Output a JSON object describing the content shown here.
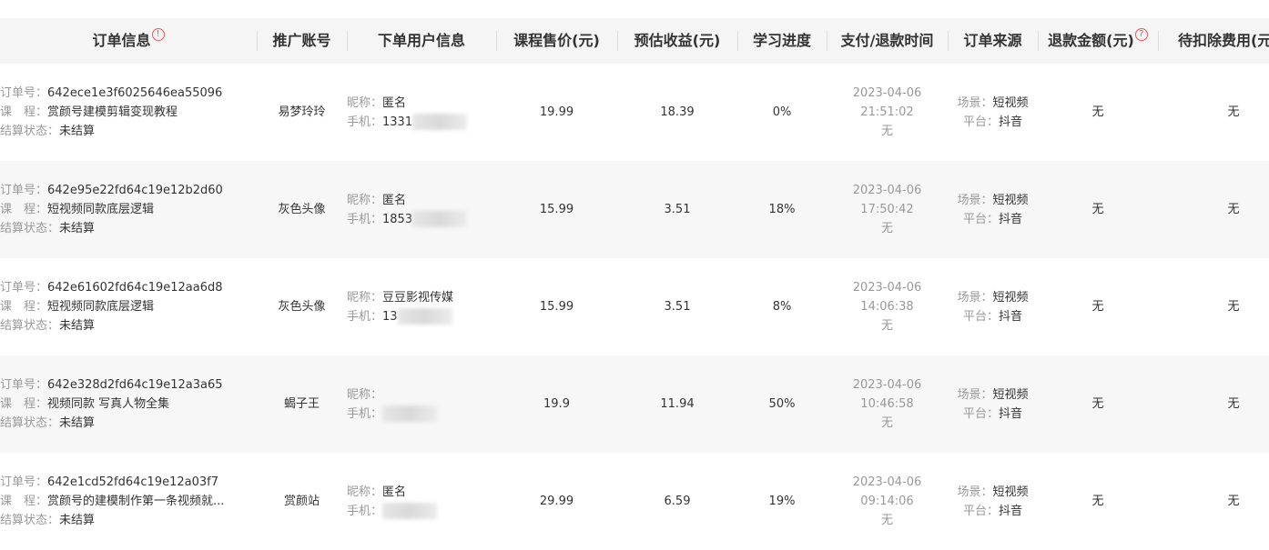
{
  "headers": [
    "订单信息",
    "推广账号",
    "下单用户信息",
    "课程售价(元)",
    "预估收益(元)",
    "学习进度",
    "支付/退款时间",
    "订单来源",
    "退款金额(元)",
    "待扣除费用(元"
  ],
  "labels": {
    "order_no": "订单号：",
    "course": "课　程：",
    "settle": "结算状态：",
    "nickname": "昵称：",
    "phone": "手机：",
    "scene": "场景：",
    "platform": "平台："
  },
  "icons": {
    "order_info": "exclamation-circle-icon",
    "refund": "question-circle-icon",
    "accent": "#e55555"
  },
  "rows": [
    {
      "order_no": "642ece1e3f6025646ea55096",
      "course": "赏颜号建模剪辑变现教程",
      "settle": "未结算",
      "promoter": "易梦玲玲",
      "nickname": "匿名",
      "phone": "1331",
      "price": "19.99",
      "income": "18.39",
      "progress": "0%",
      "date": "2023-04-06",
      "time": "21:51:02",
      "refund_time": "无",
      "scene": "短视频",
      "platform": "抖音",
      "refund": "无",
      "deduct": "无"
    },
    {
      "order_no": "642e95e22fd64c19e12b2d60",
      "course": "短视频同款底层逻辑",
      "settle": "未结算",
      "promoter": "灰色头像",
      "nickname": "匿名",
      "phone": "1853",
      "price": "15.99",
      "income": "3.51",
      "progress": "18%",
      "date": "2023-04-06",
      "time": "17:50:42",
      "refund_time": "无",
      "scene": "短视频",
      "platform": "抖音",
      "refund": "无",
      "deduct": "无"
    },
    {
      "order_no": "642e61602fd64c19e12aa6d8",
      "course": "短视频同款底层逻辑",
      "settle": "未结算",
      "promoter": "灰色头像",
      "nickname": "豆豆影视传媒",
      "phone": "13",
      "price": "15.99",
      "income": "3.51",
      "progress": "8%",
      "date": "2023-04-06",
      "time": "14:06:38",
      "refund_time": "无",
      "scene": "短视频",
      "platform": "抖音",
      "refund": "无",
      "deduct": "无"
    },
    {
      "order_no": "642e328d2fd64c19e12a3a65",
      "course": "视频同款 写真人物全集",
      "settle": "未结算",
      "promoter": "蝎子王",
      "nickname": "",
      "phone": "",
      "price": "19.9",
      "income": "11.94",
      "progress": "50%",
      "date": "2023-04-06",
      "time": "10:46:58",
      "refund_time": "无",
      "scene": "短视频",
      "platform": "抖音",
      "refund": "无",
      "deduct": "无"
    },
    {
      "order_no": "642e1cd52fd64c19e12a03f7",
      "course": "赏颜号的建模制作第一条视频就...",
      "settle": "未结算",
      "promoter": "赏颜站",
      "nickname": "匿名",
      "phone": "",
      "price": "29.99",
      "income": "6.59",
      "progress": "19%",
      "date": "2023-04-06",
      "time": "09:14:06",
      "refund_time": "无",
      "scene": "短视频",
      "platform": "抖音",
      "refund": "无",
      "deduct": "无"
    }
  ]
}
